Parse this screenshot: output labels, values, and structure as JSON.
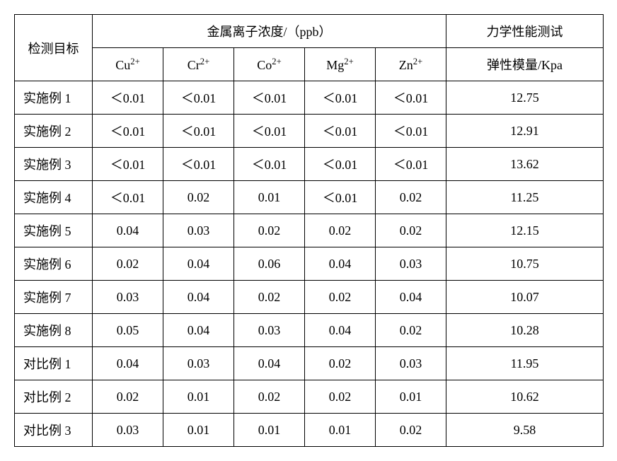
{
  "header": {
    "col0": "检测目标",
    "group_metal": "金属离子浓度/（ppb）",
    "group_mech": "力学性能测试",
    "sub": {
      "cu": "Cu",
      "cr": "Cr",
      "co": "Co",
      "mg": "Mg",
      "zn": "Zn",
      "sup": "2+",
      "mech": "弹性模量/Kpa"
    }
  },
  "rows": [
    {
      "label": "实施例 1",
      "cu": "＜0.01",
      "cr": "＜0.01",
      "co": "＜0.01",
      "mg": "＜0.01",
      "zn": "＜0.01",
      "mech": "12.75"
    },
    {
      "label": "实施例 2",
      "cu": "＜0.01",
      "cr": "＜0.01",
      "co": "＜0.01",
      "mg": "＜0.01",
      "zn": "＜0.01",
      "mech": "12.91"
    },
    {
      "label": "实施例 3",
      "cu": "＜0.01",
      "cr": "＜0.01",
      "co": "＜0.01",
      "mg": "＜0.01",
      "zn": "＜0.01",
      "mech": "13.62"
    },
    {
      "label": "实施例 4",
      "cu": "＜0.01",
      "cr": "0.02",
      "co": "0.01",
      "mg": "＜0.01",
      "zn": "0.02",
      "mech": "11.25"
    },
    {
      "label": "实施例 5",
      "cu": "0.04",
      "cr": "0.03",
      "co": "0.02",
      "mg": "0.02",
      "zn": "0.02",
      "mech": "12.15"
    },
    {
      "label": "实施例 6",
      "cu": "0.02",
      "cr": "0.04",
      "co": "0.06",
      "mg": "0.04",
      "zn": "0.03",
      "mech": "10.75"
    },
    {
      "label": "实施例 7",
      "cu": "0.03",
      "cr": "0.04",
      "co": "0.02",
      "mg": "0.02",
      "zn": "0.04",
      "mech": "10.07"
    },
    {
      "label": "实施例 8",
      "cu": "0.05",
      "cr": "0.04",
      "co": "0.03",
      "mg": "0.04",
      "zn": "0.02",
      "mech": "10.28"
    },
    {
      "label": "对比例 1",
      "cu": "0.04",
      "cr": "0.03",
      "co": "0.04",
      "mg": "0.02",
      "zn": "0.03",
      "mech": "11.95"
    },
    {
      "label": "对比例 2",
      "cu": "0.02",
      "cr": "0.01",
      "co": "0.02",
      "mg": "0.02",
      "zn": "0.01",
      "mech": "10.62"
    },
    {
      "label": "对比例 3",
      "cu": "0.03",
      "cr": "0.01",
      "co": "0.01",
      "mg": "0.01",
      "zn": "0.02",
      "mech": "9.58"
    }
  ]
}
